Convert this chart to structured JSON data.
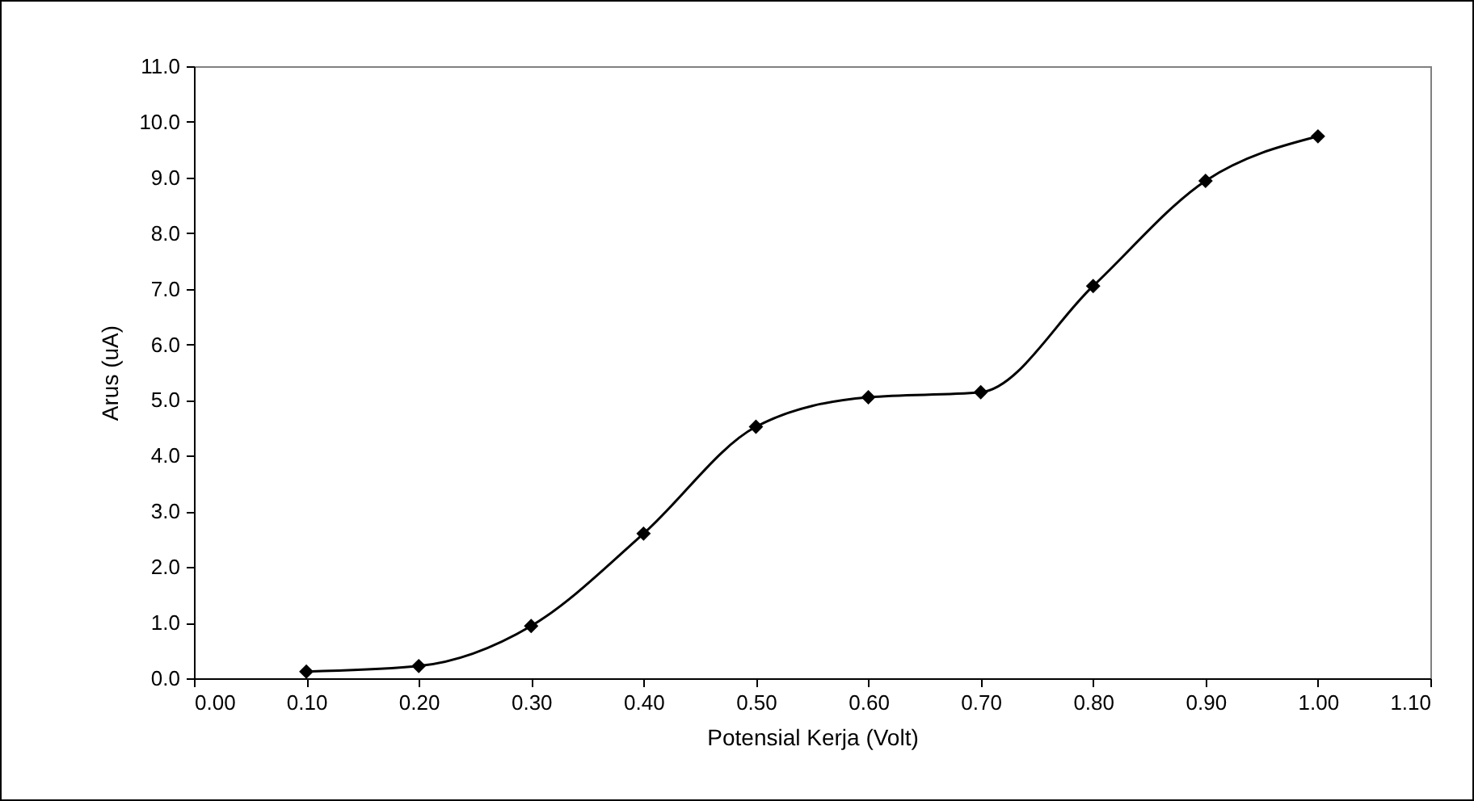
{
  "chart_data": {
    "type": "line",
    "xlabel": "Potensial Kerja (Volt)",
    "ylabel": "Arus (uA)",
    "x": [
      0.1,
      0.2,
      0.3,
      0.4,
      0.5,
      0.6,
      0.7,
      0.8,
      0.9,
      1.0
    ],
    "series": [
      {
        "color": "#000000",
        "values": [
          0.12,
          0.22,
          0.94,
          2.6,
          4.52,
          5.05,
          5.14,
          7.05,
          8.94,
          9.74
        ]
      }
    ],
    "xlim": [
      0,
      1.1
    ],
    "xticks": [
      {
        "value": 0,
        "label": "0.00"
      },
      {
        "value": 0.1,
        "label": "0.10"
      },
      {
        "value": 0.2,
        "label": "0.20"
      },
      {
        "value": 0.3,
        "label": "0.30"
      },
      {
        "value": 0.4,
        "label": "0.40"
      },
      {
        "value": 0.5,
        "label": "0.50"
      },
      {
        "value": 0.6,
        "label": "0.60"
      },
      {
        "value": 0.7,
        "label": "0.70"
      },
      {
        "value": 0.8,
        "label": "0.80"
      },
      {
        "value": 0.9,
        "label": "0.90"
      },
      {
        "value": 1.0,
        "label": "1.00"
      },
      {
        "value": 1.1,
        "label": "1.10"
      }
    ],
    "ylim": [
      0,
      11
    ],
    "yticks": [
      {
        "value": 0,
        "label": "0.0"
      },
      {
        "value": 1,
        "label": "1.0"
      },
      {
        "value": 2,
        "label": "2.0"
      },
      {
        "value": 3,
        "label": "3.0"
      },
      {
        "value": 4,
        "label": "4.0"
      },
      {
        "value": 5,
        "label": "5.0"
      },
      {
        "value": 6,
        "label": "6.0"
      },
      {
        "value": 7,
        "label": "7.0"
      },
      {
        "value": 8,
        "label": "8.0"
      },
      {
        "value": 9,
        "label": "9.0"
      },
      {
        "value": 10,
        "label": "10.0"
      },
      {
        "value": 11,
        "label": "11.0"
      }
    ],
    "marker": "diamond",
    "line_style": "solid"
  }
}
